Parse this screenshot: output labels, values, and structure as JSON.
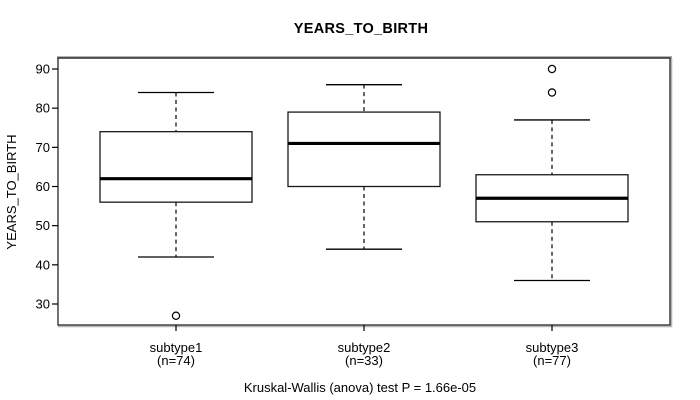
{
  "title": "YEARS_TO_BIRTH",
  "caption": "Kruskal-Wallis (anova) test P = 1.66e-05",
  "y_axis": {
    "label": "YEARS_TO_BIRTH",
    "ticks": [
      30,
      40,
      50,
      60,
      70,
      80,
      90
    ]
  },
  "x_axis": {
    "groups": [
      {
        "label": "subtype1",
        "sublabel": "(n=74)"
      },
      {
        "label": "subtype2",
        "sublabel": "(n=33)"
      },
      {
        "label": "subtype3",
        "sublabel": "(n=77)"
      }
    ]
  },
  "colors": {
    "background": "#ffffff",
    "line": "#000000",
    "box_fill": "#ffffff",
    "frame": "#262626",
    "frame_shadow": "#9a9a9a"
  },
  "chart_data": {
    "type": "boxplot",
    "title": "YEARS_TO_BIRTH",
    "ylabel": "YEARS_TO_BIRTH",
    "ylim": [
      25,
      93
    ],
    "yticks": [
      30,
      40,
      50,
      60,
      70,
      80,
      90
    ],
    "grid": false,
    "categories": [
      "subtype1",
      "subtype2",
      "subtype3"
    ],
    "category_sublabels": [
      "(n=74)",
      "(n=33)",
      "(n=77)"
    ],
    "series": [
      {
        "name": "subtype1",
        "n": 74,
        "whisker_low": 42,
        "q1": 56,
        "median": 62,
        "q3": 74,
        "whisker_high": 84,
        "outliers": [
          27
        ]
      },
      {
        "name": "subtype2",
        "n": 33,
        "whisker_low": 44,
        "q1": 60,
        "median": 71,
        "q3": 79,
        "whisker_high": 86,
        "outliers": []
      },
      {
        "name": "subtype3",
        "n": 77,
        "whisker_low": 36,
        "q1": 51,
        "median": 57,
        "q3": 63,
        "whisker_high": 77,
        "outliers": [
          84,
          90
        ]
      }
    ],
    "annotation": "Kruskal-Wallis (anova) test P = 1.66e-05"
  }
}
